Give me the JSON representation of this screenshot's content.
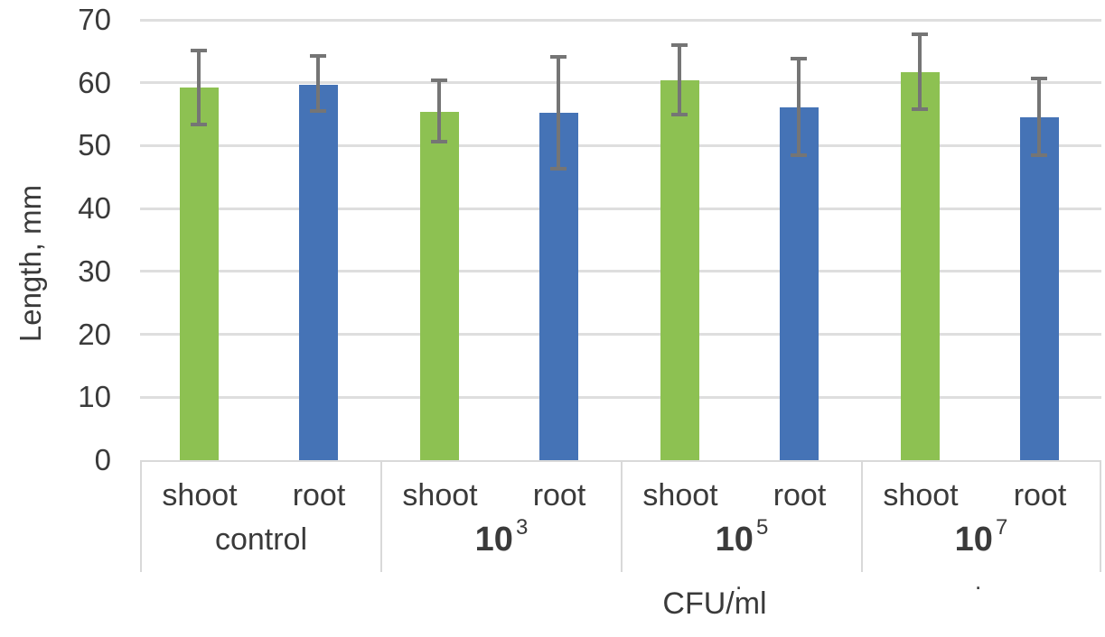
{
  "chart_data": {
    "type": "bar",
    "title": "",
    "ylabel": "Length, mm",
    "xlabel": "CFU/ml",
    "ylim": [
      0,
      70
    ],
    "yticks": [
      0,
      10,
      20,
      30,
      40,
      50,
      60,
      70
    ],
    "grid": true,
    "legend": "none",
    "series": [
      "shoot",
      "root"
    ],
    "series_colors": {
      "shoot": "#8dc152",
      "root": "#4573b6"
    },
    "error_bar_color": "#757575",
    "gridline_color": "#dedede",
    "axis_line_color": "#d9d9d9",
    "groups": [
      {
        "label": "control",
        "sup": "",
        "trailing_dot": false,
        "bars": [
          {
            "series": "shoot",
            "value": 59.2,
            "err_low": 53.1,
            "err_high": 65.4
          },
          {
            "series": "root",
            "value": 59.7,
            "err_low": 55.2,
            "err_high": 64.6
          }
        ]
      },
      {
        "label": "10",
        "sup": "3",
        "trailing_dot": false,
        "bars": [
          {
            "series": "shoot",
            "value": 55.4,
            "err_low": 50.3,
            "err_high": 60.7
          },
          {
            "series": "root",
            "value": 55.2,
            "err_low": 46.0,
            "err_high": 64.4
          }
        ]
      },
      {
        "label": "10",
        "sup": "5",
        "trailing_dot": true,
        "bars": [
          {
            "series": "shoot",
            "value": 60.4,
            "err_low": 54.6,
            "err_high": 66.2
          },
          {
            "series": "root",
            "value": 56.1,
            "err_low": 48.2,
            "err_high": 64.1
          }
        ]
      },
      {
        "label": "10",
        "sup": "7",
        "trailing_dot": true,
        "bars": [
          {
            "series": "shoot",
            "value": 61.7,
            "err_low": 55.5,
            "err_high": 68.0
          },
          {
            "series": "root",
            "value": 54.5,
            "err_low": 48.2,
            "err_high": 61.0
          }
        ]
      }
    ]
  }
}
